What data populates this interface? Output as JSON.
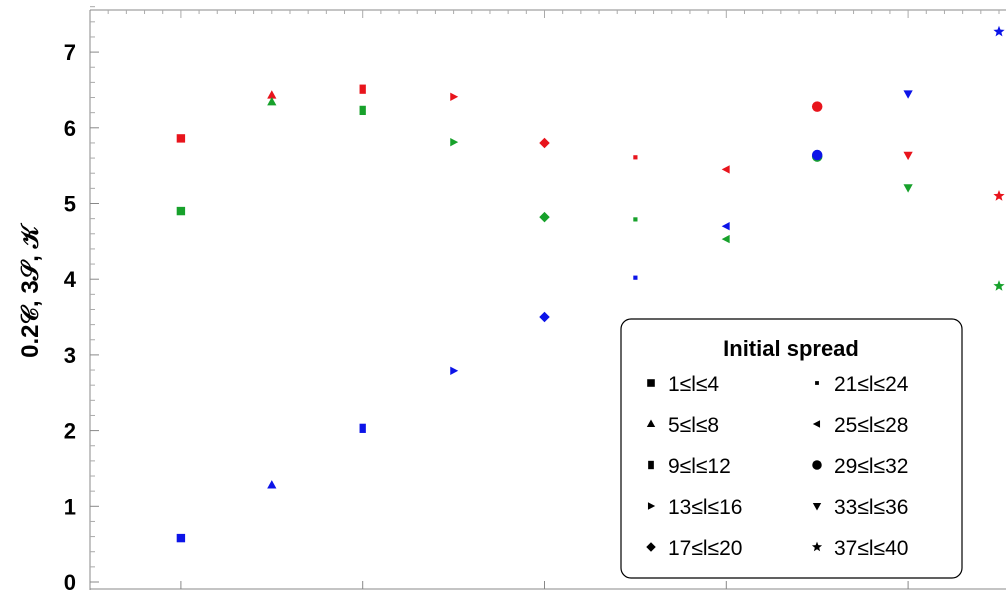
{
  "chart_data": {
    "type": "scatter",
    "ylabel": "0.2𝒞, 3𝒮, 𝒦",
    "xlabel": "",
    "ylim": [
      0,
      7.6
    ],
    "y_ticks": [
      "0",
      "1",
      "2",
      "3",
      "4",
      "5",
      "6",
      "7"
    ],
    "x": [
      1,
      2,
      3,
      4,
      5,
      6,
      7,
      8,
      9,
      10
    ],
    "colors": {
      "red": "#e8141c",
      "green": "#17a12b",
      "blue": "#0c14e8"
    },
    "series": [
      {
        "color": "red",
        "values": [
          5.86,
          6.43,
          6.51,
          6.41,
          5.8,
          5.61,
          5.45,
          6.28,
          5.64,
          5.1
        ]
      },
      {
        "color": "green",
        "values": [
          4.9,
          6.34,
          6.23,
          5.81,
          4.82,
          4.79,
          4.53,
          5.62,
          5.21,
          3.91
        ]
      },
      {
        "color": "blue",
        "values": [
          0.58,
          1.28,
          2.03,
          2.79,
          3.5,
          4.02,
          4.7,
          5.64,
          6.45,
          7.27
        ]
      }
    ],
    "markers": [
      "square",
      "triangle-up",
      "tall-rect",
      "triangle-right",
      "diamond",
      "dot",
      "triangle-left",
      "circle",
      "triangle-down",
      "star"
    ],
    "legend": {
      "title": "Initial spread",
      "placement": "bottom-right",
      "entries": [
        "1≤l≤4",
        "5≤l≤8",
        "9≤l≤12",
        "13≤l≤16",
        "17≤l≤20",
        "21≤l≤24",
        "25≤l≤28",
        "29≤l≤32",
        "33≤l≤36",
        "37≤l≤40"
      ]
    },
    "grid": false
  }
}
